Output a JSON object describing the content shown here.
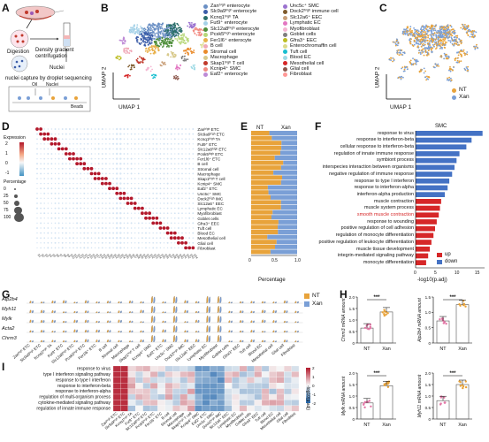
{
  "panels": {
    "A": {
      "letter": "A",
      "steps": [
        "Digestion",
        "Density gradient centrifugation",
        "Nuclei",
        "nuclei capture by droplet sequencing",
        "Oil",
        "Nuclei",
        "Beads"
      ]
    },
    "B": {
      "letter": "B",
      "xaxis": "UMAP 1",
      "yaxis": "UMAP 2",
      "legend_left": [
        {
          "label": "Zan^high enterocyte",
          "color": "#6a8fc4"
        },
        {
          "label": "Slc9a9^high enterocyte",
          "color": "#3b5ca8"
        },
        {
          "label": "Kcnq1^high TA",
          "color": "#2a6e6a"
        },
        {
          "label": "Fut9^+ enterocyte",
          "color": "#a6d2e8"
        },
        {
          "label": "Slc12a8^high enterocyte",
          "color": "#4e8e3a"
        },
        {
          "label": "Pcsk5^high enterocyte",
          "color": "#b7d77a"
        },
        {
          "label": "Fer1l6^+ enterocyte",
          "color": "#e8b04a"
        },
        {
          "label": "B cell",
          "color": "#f0a9b8"
        },
        {
          "label": "Stromal cell",
          "color": "#e98a2a"
        },
        {
          "label": "Macrophage",
          "color": "#d8c98a"
        },
        {
          "label": "Skap1^high T cell",
          "color": "#c0392b"
        },
        {
          "label": "Kcnip4^+ SMC",
          "color": "#f28b82"
        },
        {
          "label": "Eaf2^+ enterocyte",
          "color": "#bd8ad6"
        }
      ],
      "legend_right": [
        {
          "label": "Unc5c^+ SMC",
          "color": "#9b72cf"
        },
        {
          "label": "Dock2^high immune cell",
          "color": "#7e5a2c"
        },
        {
          "label": "Slc12a6^+ EEC",
          "color": "#c9a07a"
        },
        {
          "label": "Lymphatic EC",
          "color": "#e377c2"
        },
        {
          "label": "Myofibroblast",
          "color": "#f4b6d2"
        },
        {
          "label": "Goblet cells",
          "color": "#7f7f7f"
        },
        {
          "label": "Gfra3^+ EEC",
          "color": "#bcbd22"
        },
        {
          "label": "Enterochromaffin cell",
          "color": "#dbdb8d"
        },
        {
          "label": "Tuft cell",
          "color": "#17becf"
        },
        {
          "label": "Blood EC",
          "color": "#9edae5"
        },
        {
          "label": "Mesothelial cell",
          "color": "#d62728"
        },
        {
          "label": "Glial cell",
          "color": "#8c564b"
        },
        {
          "label": "Fibroblast",
          "color": "#ff9896"
        }
      ]
    },
    "C": {
      "letter": "C",
      "xaxis": "UMAP 1",
      "yaxis": "UMAP 2",
      "legend": [
        {
          "label": "NT",
          "color": "#e8a33b"
        },
        {
          "label": "Xan",
          "color": "#7a9fd6"
        }
      ]
    },
    "D": {
      "letter": "D",
      "expr_title": "Expression",
      "expr_ticks": [
        "2",
        "1",
        "0",
        "-1"
      ],
      "pct_title": "Percentage",
      "pct_ticks": [
        "0",
        "25",
        "50",
        "75",
        "100"
      ],
      "rows": [
        "Zan^high ETC",
        "Slc9a9^high ETC",
        "Kcnq1^high TA",
        "Fut9^+ ETC",
        "Slc12a8^high ETC",
        "Pcsk5^high ETC",
        "Fer1l6^+ ETC",
        "B cell",
        "Stromal cell",
        "Macrophage",
        "Skap1^high T cell",
        "Kcnip4^+ SMC",
        "Eaf2^+ ETC",
        "Unc5c^+ SMC",
        "Dock2^high IMC",
        "Slc12a6^+ EEC",
        "Lymphatic EC",
        "Myofibroblast",
        "Goblet cells",
        "Gfra3^+ EEC",
        "Tuft cell",
        "Blood EC",
        "Mesothelial cell",
        "Glial cell",
        "Fibroblast"
      ]
    },
    "E": {
      "letter": "E",
      "nt": "NT",
      "xan": "Xan",
      "xlabel": "Percentage",
      "ticks": [
        "0",
        "0.5",
        "1.0"
      ]
    },
    "F": {
      "letter": "F",
      "title": "SMC",
      "xlabel": "-log10(p.adj)",
      "ticks": [
        "0",
        "5",
        "10",
        "15"
      ],
      "legend": [
        {
          "label": "up",
          "color": "#d62728"
        },
        {
          "label": "down",
          "color": "#4472c4"
        }
      ],
      "terms": [
        {
          "label": "response to virus",
          "value": 16.5,
          "dir": "down"
        },
        {
          "label": "response to interferon-beta",
          "value": 13.8,
          "dir": "down"
        },
        {
          "label": "cellular response to interferon-beta",
          "value": 12.5,
          "dir": "down"
        },
        {
          "label": "regulation of innate immune response",
          "value": 10.8,
          "dir": "down"
        },
        {
          "label": "symbiont process",
          "value": 10.1,
          "dir": "down"
        },
        {
          "label": "interspecies interaction between organisms",
          "value": 9.6,
          "dir": "down"
        },
        {
          "label": "negative regulation of immune response",
          "value": 9.0,
          "dir": "down"
        },
        {
          "label": "response to type I interferon",
          "value": 8.3,
          "dir": "down"
        },
        {
          "label": "response to interferon-alpha",
          "value": 7.9,
          "dir": "down"
        },
        {
          "label": "interferon-alpha production",
          "value": 7.2,
          "dir": "down"
        },
        {
          "label": "muscle contraction",
          "value": 6.3,
          "dir": "up"
        },
        {
          "label": "muscle system process",
          "value": 6.0,
          "dir": "up"
        },
        {
          "label": "smooth muscle contraction",
          "value": 5.7,
          "dir": "up",
          "highlight": true
        },
        {
          "label": "response to wounding",
          "value": 5.2,
          "dir": "up"
        },
        {
          "label": "positive regulation of cell adhesion",
          "value": 4.8,
          "dir": "up"
        },
        {
          "label": "regulation of monocyte differentiation",
          "value": 4.4,
          "dir": "up"
        },
        {
          "label": "positive regulation of leukocyte differentiation",
          "value": 3.9,
          "dir": "up"
        },
        {
          "label": "muscle tissue development",
          "value": 3.5,
          "dir": "up"
        },
        {
          "label": "integrin-mediated signaling pathway",
          "value": 3.1,
          "dir": "up"
        },
        {
          "label": "monocyte differentiation",
          "value": 2.6,
          "dir": "up"
        }
      ]
    },
    "G": {
      "letter": "G",
      "genes": [
        "Atp2b4",
        "Myh11",
        "Mylk",
        "Acta2",
        "Chrm3"
      ],
      "legend": [
        {
          "label": "NT",
          "color": "#e8a33b"
        },
        {
          "label": "Xan",
          "color": "#7a9fd6"
        }
      ],
      "cells": [
        "Zan^high ETC",
        "Slc9a9^high ETC",
        "Kcnq1^high TA",
        "Fut9^+ ETC",
        "Slc12a8^high ETC",
        "Pcsk5^high ETC",
        "Fer1l6^+ ETC",
        "B cell",
        "Stromal cell",
        "Macrophage",
        "Skap1^high T cell",
        "Kcnip4^+ SMC",
        "Eaf2^+ ETC",
        "Unc5c^+ SMC",
        "Dock2^high IMC",
        "Slc12a6^+ EEC",
        "Lymphatic EC",
        "Myofibroblast",
        "Goblet cells",
        "Gfra3^+ EEC",
        "Tuft cell",
        "Blood EC",
        "Mesothelial cell",
        "Glial cell",
        "Fibroblast"
      ]
    },
    "H": {
      "letter": "H",
      "plots": [
        {
          "ylabel": "Chrm3 mRNA amount",
          "groups": [
            "NT",
            "Xan"
          ],
          "sig": "***",
          "ticks": [
            "0",
            "0.5",
            "1.0",
            "1.5",
            "2.0"
          ],
          "means": [
            0.65,
            1.35
          ]
        },
        {
          "ylabel": "Atp2b4 mRNA amount",
          "groups": [
            "NT",
            "Xan"
          ],
          "sig": "***",
          "ticks": [
            "0",
            "0.5",
            "1.0",
            "1.5"
          ],
          "means": [
            0.72,
            1.25
          ]
        },
        {
          "ylabel": "Mylk mRNA amount",
          "groups": [
            "NT",
            "Xan"
          ],
          "sig": "***",
          "ticks": [
            "0",
            "0.5",
            "1.0",
            "1.5",
            "2.0"
          ],
          "means": [
            0.7,
            1.45
          ]
        },
        {
          "ylabel": "Myh11 mRNA amount",
          "groups": [
            "NT",
            "Xan"
          ],
          "sig": "***",
          "ticks": [
            "0",
            "0.5",
            "1.0",
            "1.5",
            "2.0"
          ],
          "means": [
            0.8,
            1.5
          ]
        }
      ]
    },
    "I": {
      "letter": "I",
      "legend_title": "-log10(p.adj)",
      "legend_ticks": [
        "2",
        "1",
        "0",
        "-1",
        "-2"
      ],
      "rows": [
        "response to virus",
        "type I interferon signaling pathway",
        "response to type I interferon",
        "response to interferon-beta",
        "response to interferon-alpha",
        "regulation of multi-organism process",
        "cytokine-mediated signaling pathway",
        "regulation of innate immune response"
      ]
    }
  }
}
